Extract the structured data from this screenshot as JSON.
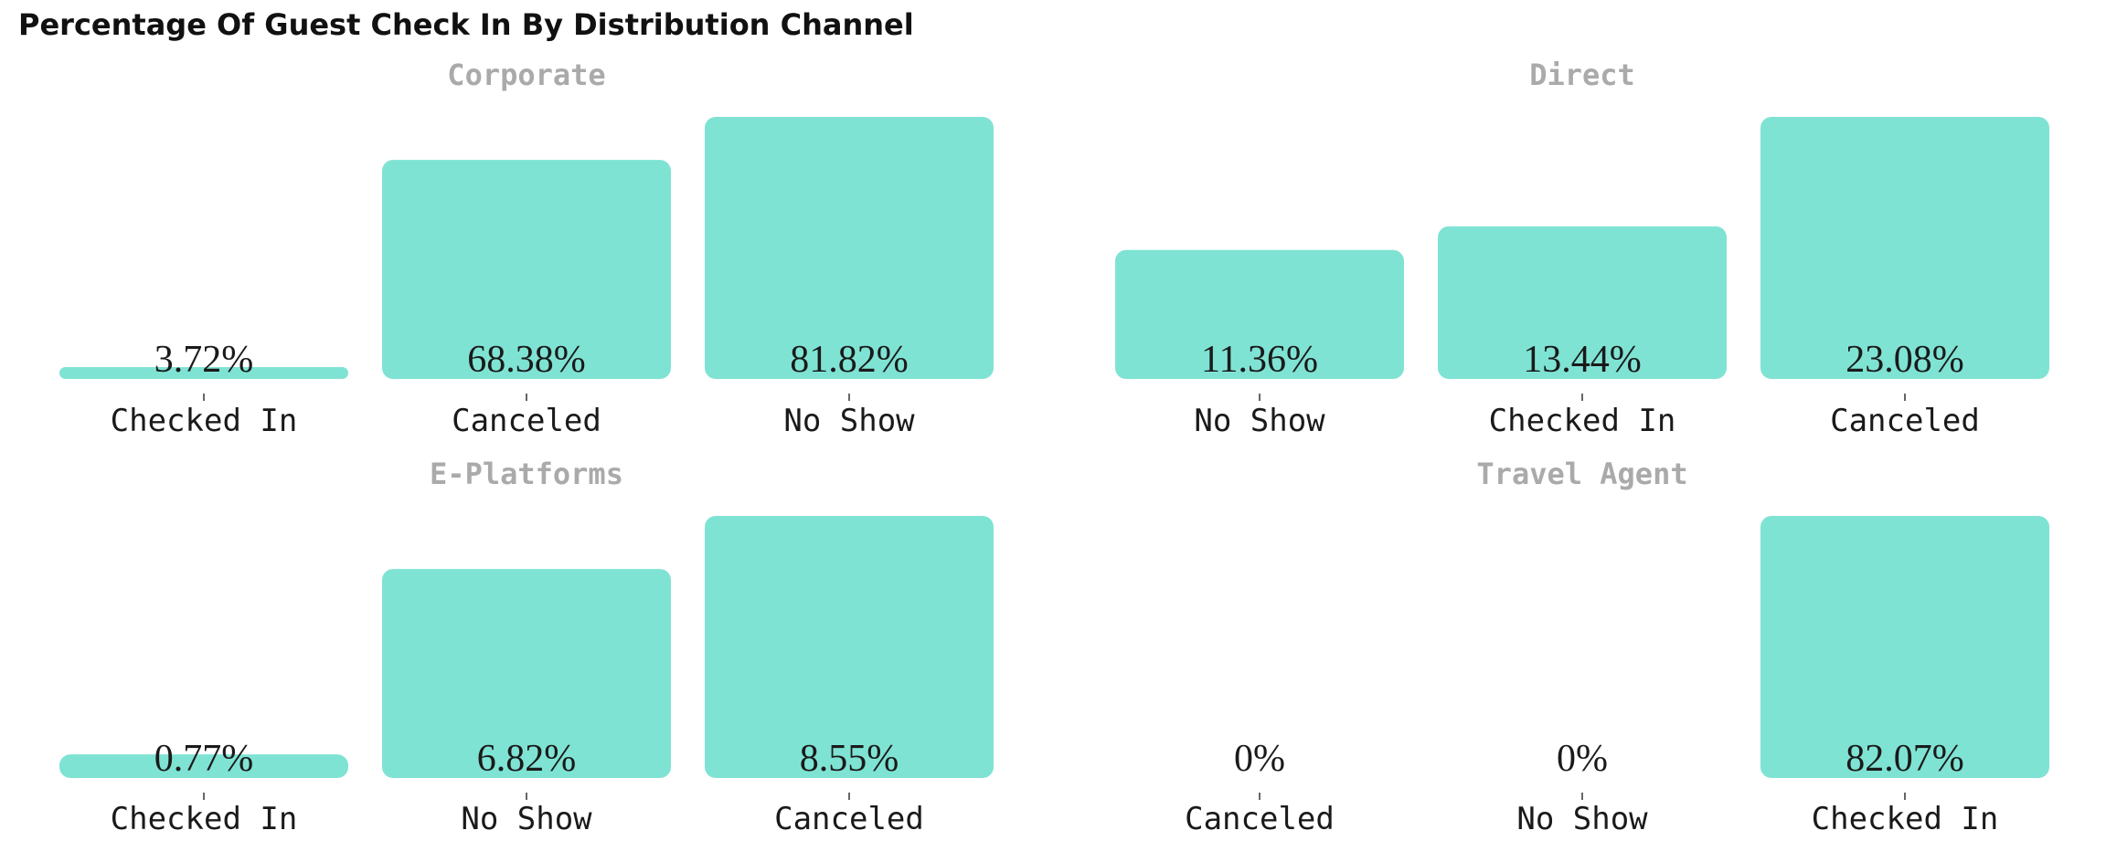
{
  "title": "Percentage Of Guest Check In By Distribution Channel",
  "chart_data": [
    {
      "type": "bar",
      "title": "Corporate",
      "categories": [
        "Checked In",
        "Canceled",
        "No Show"
      ],
      "values": [
        3.72,
        68.38,
        81.82
      ],
      "labels": [
        "3.72%",
        "68.38%",
        "81.82%"
      ],
      "color": "#7fe3d4"
    },
    {
      "type": "bar",
      "title": "Direct",
      "categories": [
        "No Show",
        "Checked In",
        "Canceled"
      ],
      "values": [
        11.36,
        13.44,
        23.08
      ],
      "labels": [
        "11.36%",
        "13.44%",
        "23.08%"
      ],
      "color": "#7fe3d4"
    },
    {
      "type": "bar",
      "title": "E-Platforms",
      "categories": [
        "Checked In",
        "No Show",
        "Canceled"
      ],
      "values": [
        0.77,
        6.82,
        8.55
      ],
      "labels": [
        "0.77%",
        "6.82%",
        "8.55%"
      ],
      "color": "#7fe3d4"
    },
    {
      "type": "bar",
      "title": "Travel Agent",
      "categories": [
        "Canceled",
        "No Show",
        "Checked In"
      ],
      "values": [
        0,
        0,
        82.07
      ],
      "labels": [
        "0%",
        "0%",
        "82.07%"
      ],
      "color": "#7fe3d4"
    }
  ]
}
